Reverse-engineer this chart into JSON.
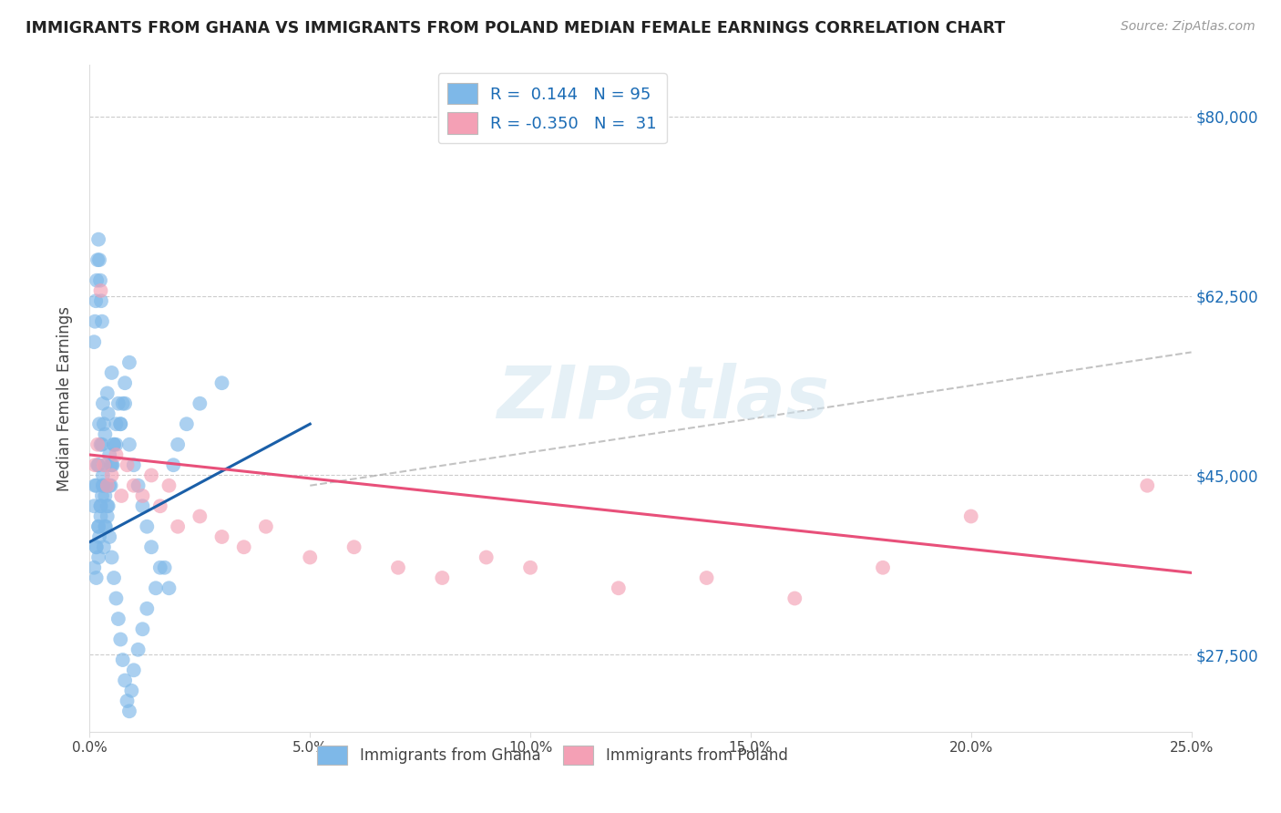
{
  "title": "IMMIGRANTS FROM GHANA VS IMMIGRANTS FROM POLAND MEDIAN FEMALE EARNINGS CORRELATION CHART",
  "source": "Source: ZipAtlas.com",
  "ylabel": "Median Female Earnings",
  "xlim": [
    0.0,
    25.0
  ],
  "ylim": [
    20000,
    85000
  ],
  "yticks": [
    27500,
    45000,
    62500,
    80000
  ],
  "ytick_labels": [
    "$27,500",
    "$45,000",
    "$62,500",
    "$80,000"
  ],
  "ghana_color": "#7eb8e8",
  "poland_color": "#f4a0b5",
  "ghana_line_color": "#1a5fa8",
  "poland_line_color": "#e8507a",
  "dash_color": "#aaaaaa",
  "ghana_R": 0.144,
  "ghana_N": 95,
  "poland_R": -0.35,
  "poland_N": 31,
  "ghana_x": [
    0.15,
    0.18,
    0.22,
    0.25,
    0.3,
    0.35,
    0.4,
    0.42,
    0.45,
    0.5,
    0.1,
    0.12,
    0.2,
    0.28,
    0.32,
    0.38,
    0.48,
    0.55,
    0.6,
    0.65,
    0.15,
    0.2,
    0.25,
    0.3,
    0.35,
    0.55,
    0.7,
    0.75,
    0.8,
    0.9,
    0.1,
    0.15,
    0.2,
    0.25,
    0.3,
    0.35,
    0.4,
    0.45,
    0.5,
    0.6,
    0.7,
    0.8,
    0.9,
    1.0,
    1.1,
    1.2,
    1.3,
    1.4,
    1.6,
    1.8,
    0.15,
    0.2,
    0.22,
    0.25,
    0.28,
    0.3,
    0.35,
    0.4,
    0.45,
    0.5,
    0.55,
    0.6,
    0.65,
    0.7,
    0.75,
    0.8,
    0.85,
    0.9,
    0.95,
    1.0,
    1.1,
    1.2,
    1.3,
    1.5,
    1.7,
    0.1,
    0.12,
    0.14,
    0.16,
    0.18,
    0.2,
    0.22,
    0.24,
    0.26,
    0.28,
    1.9,
    2.0,
    2.2,
    2.5,
    3.0,
    0.32,
    0.36,
    0.42,
    0.48,
    0.52
  ],
  "ghana_y": [
    44000,
    46000,
    50000,
    48000,
    52000,
    49000,
    53000,
    51000,
    47000,
    55000,
    42000,
    44000,
    46000,
    48000,
    50000,
    44000,
    46000,
    48000,
    50000,
    52000,
    38000,
    40000,
    42000,
    44000,
    46000,
    48000,
    50000,
    52000,
    54000,
    56000,
    36000,
    38000,
    40000,
    42000,
    44000,
    40000,
    42000,
    44000,
    46000,
    48000,
    50000,
    52000,
    48000,
    46000,
    44000,
    42000,
    40000,
    38000,
    36000,
    34000,
    35000,
    37000,
    39000,
    41000,
    43000,
    45000,
    43000,
    41000,
    39000,
    37000,
    35000,
    33000,
    31000,
    29000,
    27000,
    25000,
    23000,
    22000,
    24000,
    26000,
    28000,
    30000,
    32000,
    34000,
    36000,
    58000,
    60000,
    62000,
    64000,
    66000,
    68000,
    66000,
    64000,
    62000,
    60000,
    46000,
    48000,
    50000,
    52000,
    54000,
    38000,
    40000,
    42000,
    44000,
    46000
  ],
  "poland_x": [
    0.12,
    0.18,
    0.25,
    0.32,
    0.4,
    0.5,
    0.6,
    0.72,
    0.85,
    1.0,
    1.2,
    1.4,
    1.6,
    1.8,
    2.0,
    2.5,
    3.0,
    3.5,
    4.0,
    5.0,
    6.0,
    7.0,
    8.0,
    9.0,
    10.0,
    12.0,
    14.0,
    16.0,
    18.0,
    20.0,
    24.0
  ],
  "poland_y": [
    46000,
    48000,
    63000,
    46000,
    44000,
    45000,
    47000,
    43000,
    46000,
    44000,
    43000,
    45000,
    42000,
    44000,
    40000,
    41000,
    39000,
    38000,
    40000,
    37000,
    38000,
    36000,
    35000,
    37000,
    36000,
    34000,
    35000,
    33000,
    36000,
    41000,
    44000
  ],
  "ghana_line_x": [
    0.0,
    5.0
  ],
  "ghana_line_y": [
    38500,
    50000
  ],
  "poland_line_x": [
    0.0,
    25.0
  ],
  "poland_line_y": [
    47000,
    35500
  ],
  "dash_line_x": [
    5.0,
    25.0
  ],
  "dash_line_y": [
    44000,
    57000
  ]
}
